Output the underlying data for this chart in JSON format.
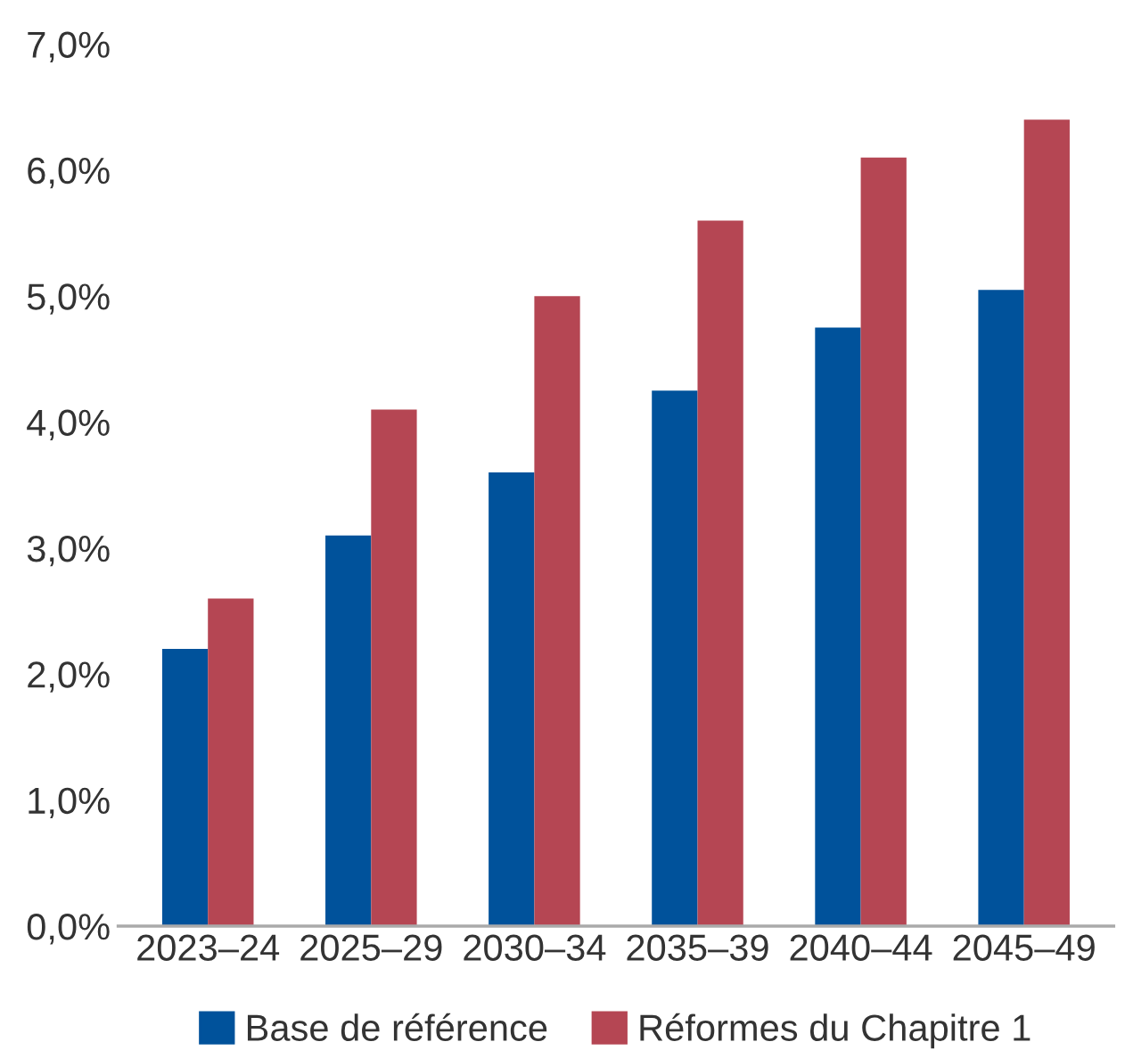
{
  "chart_data": {
    "type": "bar",
    "categories": [
      "2023–24",
      "2025–29",
      "2030–34",
      "2035–39",
      "2040–44",
      "2045–49"
    ],
    "series": [
      {
        "name": "Base de référence",
        "color": "#00529b",
        "values": [
          2.2,
          3.1,
          3.6,
          4.25,
          4.75,
          5.05
        ]
      },
      {
        "name": "Réformes du Chapitre 1",
        "color": "#b54653",
        "values": [
          2.6,
          4.1,
          5.0,
          5.6,
          6.1,
          6.4
        ]
      }
    ],
    "ylim": [
      0,
      7
    ],
    "yticks": [
      {
        "value": 0,
        "label": "0,0%"
      },
      {
        "value": 1,
        "label": "1,0%"
      },
      {
        "value": 2,
        "label": "2,0%"
      },
      {
        "value": 3,
        "label": "3,0%"
      },
      {
        "value": 4,
        "label": "4,0%"
      },
      {
        "value": 5,
        "label": "5,0%"
      },
      {
        "value": 6,
        "label": "6,0%"
      },
      {
        "value": 7,
        "label": "7,0%"
      }
    ],
    "grid": false,
    "legend": "bottom"
  }
}
